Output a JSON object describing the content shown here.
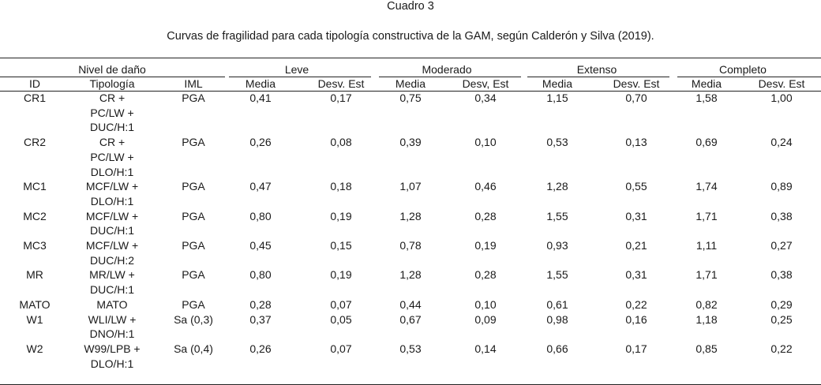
{
  "caption": {
    "number": "Cuadro 3",
    "title": "Curvas de fragilidad para cada tipología constructiva de la GAM, según Calderón y Silva (2019)."
  },
  "header": {
    "group_row": [
      "Nivel de daño",
      "Leve",
      "Moderado",
      "Extenso",
      "Completo"
    ],
    "columns": [
      "ID",
      "Tipología",
      "IML",
      "Media",
      "Desv. Est",
      "Media",
      "Desv, Est",
      "Media",
      "Desv. Est",
      "Media",
      "Desv. Est"
    ]
  },
  "rows": [
    {
      "id": "CR1",
      "tipologia": [
        "CR +",
        "PC/LW +",
        "DUC/H:1"
      ],
      "iml": "PGA",
      "values": [
        "0,41",
        "0,17",
        "0,75",
        "0,34",
        "1,15",
        "0,70",
        "1,58",
        "1,00"
      ]
    },
    {
      "id": "CR2",
      "tipologia": [
        "CR +",
        "PC/LW +",
        "DLO/H:1"
      ],
      "iml": "PGA",
      "values": [
        "0,26",
        "0,08",
        "0,39",
        "0,10",
        "0,53",
        "0,13",
        "0,69",
        "0,24"
      ]
    },
    {
      "id": "MC1",
      "tipologia": [
        "MCF/LW +",
        "DLO/H:1"
      ],
      "iml": "PGA",
      "values": [
        "0,47",
        "0,18",
        "1,07",
        "0,46",
        "1,28",
        "0,55",
        "1,74",
        "0,89"
      ]
    },
    {
      "id": "MC2",
      "tipologia": [
        "MCF/LW +",
        "DUC/H:1"
      ],
      "iml": "PGA",
      "values": [
        "0,80",
        "0,19",
        "1,28",
        "0,28",
        "1,55",
        "0,31",
        "1,71",
        "0,38"
      ]
    },
    {
      "id": "MC3",
      "tipologia": [
        "MCF/LW +",
        "DUC/H:2"
      ],
      "iml": "PGA",
      "values": [
        "0,45",
        "0,15",
        "0,78",
        "0,19",
        "0,93",
        "0,21",
        "1,11",
        "0,27"
      ]
    },
    {
      "id": "MR",
      "tipologia": [
        "MR/LW +",
        "DUC/H:1"
      ],
      "iml": "PGA",
      "values": [
        "0,80",
        "0,19",
        "1,28",
        "0,28",
        "1,55",
        "0,31",
        "1,71",
        "0,38"
      ]
    },
    {
      "id": "MATO",
      "tipologia": [
        "MATO"
      ],
      "iml": "PGA",
      "values": [
        "0,28",
        "0,07",
        "0,44",
        "0,10",
        "0,61",
        "0,22",
        "0,82",
        "0,29"
      ]
    },
    {
      "id": "W1",
      "tipologia": [
        "WLI/LW +",
        "DNO/H:1"
      ],
      "iml": "Sa (0,3)",
      "values": [
        "0,37",
        "0,05",
        "0,67",
        "0,09",
        "0,98",
        "0,16",
        "1,18",
        "0,25"
      ]
    },
    {
      "id": "W2",
      "tipologia": [
        "W99/LPB +",
        "DLO/H:1"
      ],
      "iml": "Sa (0,4)",
      "values": [
        "0,26",
        "0,07",
        "0,53",
        "0,14",
        "0,66",
        "0,17",
        "0,85",
        "0,22"
      ]
    }
  ]
}
